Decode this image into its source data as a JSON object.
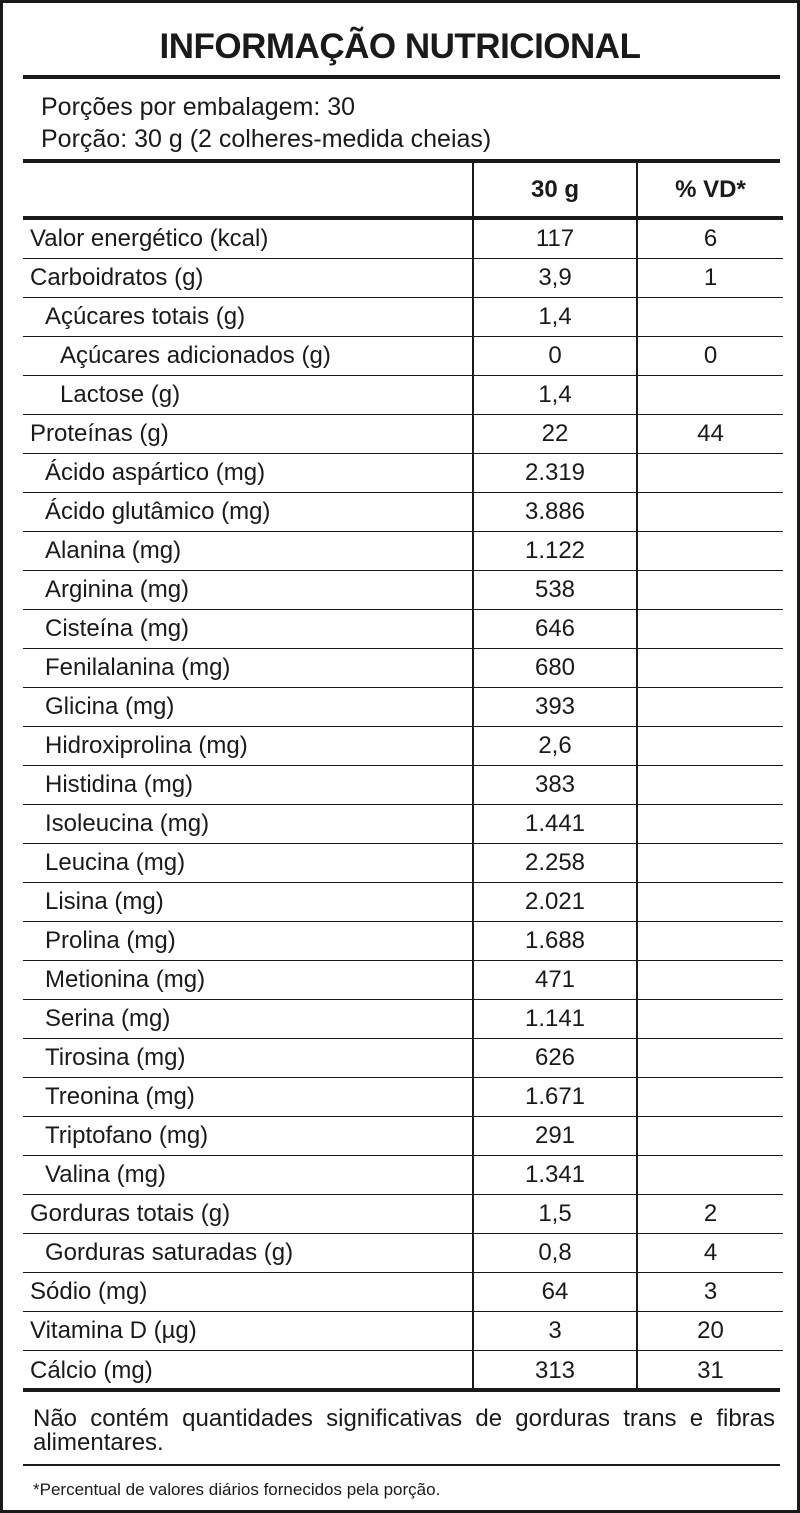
{
  "title": "INFORMAÇÃO NUTRICIONAL",
  "serving": {
    "per_package": "Porções por embalagem: 30",
    "portion": "Porção: 30 g (2 colheres-medida cheias)"
  },
  "table": {
    "header": {
      "amount": "30 g",
      "dv": "% VD*"
    },
    "rows": [
      {
        "label": "Valor energético (kcal)",
        "value": "117",
        "dv": "6"
      },
      {
        "label": "Carboidratos (g)",
        "value": "3,9",
        "dv": "1",
        "children": [
          {
            "label": "Açúcares totais (g)",
            "value": "1,4",
            "children": [
              {
                "label": "Açúcares adicionados (g)",
                "value": "0",
                "dv": "0"
              },
              {
                "label": "Lactose (g)",
                "value": "1,4"
              }
            ]
          }
        ]
      },
      {
        "label": "Proteínas (g)",
        "value": "22",
        "dv": "44",
        "children": [
          {
            "label": "Ácido aspártico (mg)",
            "value": "2.319"
          },
          {
            "label": "Ácido glutâmico (mg)",
            "value": "3.886"
          },
          {
            "label": "Alanina (mg)",
            "value": "1.122"
          },
          {
            "label": "Arginina (mg)",
            "value": "538"
          },
          {
            "label": "Cisteína (mg)",
            "value": "646"
          },
          {
            "label": "Fenilalanina (mg)",
            "value": "680"
          },
          {
            "label": "Glicina (mg)",
            "value": "393"
          },
          {
            "label": "Hidroxiprolina (mg)",
            "value": "2,6"
          },
          {
            "label": "Histidina (mg)",
            "value": "383"
          },
          {
            "label": "Isoleucina (mg)",
            "value": "1.441"
          },
          {
            "label": "Leucina (mg)",
            "value": "2.258"
          },
          {
            "label": "Lisina (mg)",
            "value": "2.021"
          },
          {
            "label": "Prolina (mg)",
            "value": "1.688"
          },
          {
            "label": "Metionina (mg)",
            "value": "471"
          },
          {
            "label": "Serina (mg)",
            "value": "1.141"
          },
          {
            "label": "Tirosina (mg)",
            "value": "626"
          },
          {
            "label": "Treonina (mg)",
            "value": "1.671"
          },
          {
            "label": "Triptofano (mg)",
            "value": "291"
          },
          {
            "label": "Valina (mg)",
            "value": "1.341"
          }
        ]
      },
      {
        "label": "Gorduras totais (g)",
        "value": "1,5",
        "dv": "2",
        "children": [
          {
            "label": "Gorduras saturadas (g)",
            "value": "0,8",
            "dv": "4"
          }
        ]
      },
      {
        "label": "Sódio (mg)",
        "value": "64",
        "dv": "3"
      },
      {
        "label": "Vitamina D (µg)",
        "value": "3",
        "dv": "20"
      },
      {
        "label": "Cálcio (mg)",
        "value": "313",
        "dv": "31"
      }
    ]
  },
  "note": "Não contém quantidades significativas de gorduras trans e fibras alimentares.",
  "footnote": "*Percentual de valores diários fornecidos pela porção."
}
